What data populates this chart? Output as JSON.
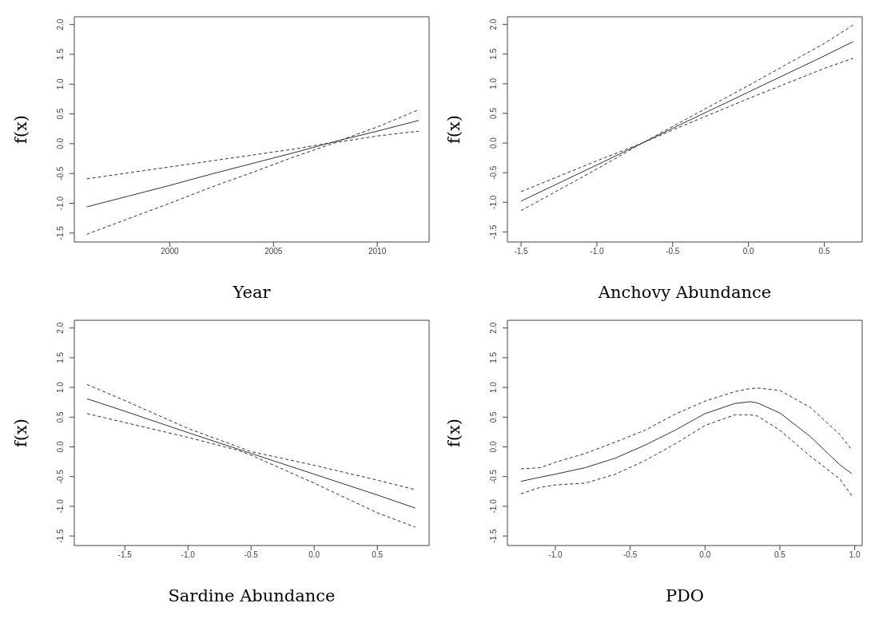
{
  "chart_data": [
    {
      "type": "line",
      "xlabel": "Year",
      "ylabel": "f(x)",
      "xlim": [
        1995.4,
        2012.5
      ],
      "xticks": [
        2000,
        2005,
        2010
      ],
      "ylim": [
        -1.65,
        2.13
      ],
      "yticks": [
        -1.5,
        {
          "value": -1,
          "label": "-1.0"
        },
        -0.5,
        {
          "value": 0,
          "label": "0.0"
        },
        0.5,
        {
          "value": 1,
          "label": "1.0"
        },
        1.5,
        {
          "value": 2,
          "label": "2.0"
        }
      ],
      "x": [
        1996,
        1998,
        2000,
        2002,
        2004,
        2006,
        2008,
        2010,
        2012
      ],
      "series": [
        {
          "color": "#333333",
          "line_style": "solid",
          "values": [
            -1.06,
            -0.88,
            -0.7,
            -0.51,
            -0.33,
            -0.15,
            0.04,
            0.21,
            0.39
          ]
        },
        {
          "color": "#333333",
          "line_style": "dashed",
          "values": [
            -1.52,
            -1.26,
            -1.0,
            -0.73,
            -0.48,
            -0.22,
            0.02,
            0.13,
            0.21
          ]
        },
        {
          "color": "#333333",
          "line_style": "dashed",
          "values": [
            -0.59,
            -0.49,
            -0.39,
            -0.29,
            -0.19,
            -0.09,
            0.03,
            0.28,
            0.57
          ]
        }
      ]
    },
    {
      "type": "line",
      "xlabel": "Anchovy Abundance",
      "ylabel": "f(x)",
      "xlim": [
        -1.59,
        0.75
      ],
      "xticks": [
        -1.5,
        {
          "value": -1,
          "label": "-1.0"
        },
        -0.5,
        {
          "value": 0,
          "label": "0.0"
        },
        0.5
      ],
      "ylim": [
        -1.67,
        2.13
      ],
      "yticks": [
        -1.5,
        {
          "value": -1,
          "label": "-1.0"
        },
        -0.5,
        {
          "value": 0,
          "label": "0.0"
        },
        0.5,
        {
          "value": 1,
          "label": "1.0"
        },
        1.5,
        {
          "value": 2,
          "label": "2.0"
        }
      ],
      "x": [
        -1.5,
        -1.0,
        -0.7,
        -0.5,
        0,
        0.5,
        0.69
      ],
      "series": [
        {
          "color": "#333333",
          "line_style": "solid",
          "values": [
            -0.98,
            -0.37,
            0.0,
            0.25,
            0.86,
            1.47,
            1.71
          ]
        },
        {
          "color": "#333333",
          "line_style": "dashed",
          "values": [
            -1.14,
            -0.44,
            0.0,
            0.22,
            0.75,
            1.26,
            1.43
          ]
        },
        {
          "color": "#333333",
          "line_style": "dashed",
          "values": [
            -0.82,
            -0.3,
            0.0,
            0.28,
            0.97,
            1.68,
            1.99
          ]
        }
      ]
    },
    {
      "type": "line",
      "xlabel": "Sardine Abundance",
      "ylabel": "f(x)",
      "xlim": [
        -1.9,
        0.91
      ],
      "xticks": [
        -1.5,
        {
          "value": -1,
          "label": "-1.0"
        },
        -0.5,
        {
          "value": 0,
          "label": "0.0"
        },
        0.5
      ],
      "ylim": [
        -1.66,
        2.13
      ],
      "yticks": [
        -1.5,
        {
          "value": -1,
          "label": "-1.0"
        },
        -0.5,
        {
          "value": 0,
          "label": "0.0"
        },
        0.5,
        {
          "value": 1,
          "label": "1.0"
        },
        1.5,
        {
          "value": 2,
          "label": "2.0"
        }
      ],
      "x": [
        -1.8,
        -1.5,
        -1.0,
        -0.6,
        -0.5,
        0,
        0.5,
        0.8
      ],
      "series": [
        {
          "color": "#333333",
          "line_style": "solid",
          "values": [
            0.81,
            0.6,
            0.24,
            -0.04,
            -0.11,
            -0.46,
            -0.81,
            -1.03
          ]
        },
        {
          "color": "#333333",
          "line_style": "dashed",
          "values": [
            0.56,
            0.41,
            0.16,
            -0.06,
            -0.14,
            -0.61,
            -1.11,
            -1.35
          ]
        },
        {
          "color": "#333333",
          "line_style": "dashed",
          "values": [
            1.05,
            0.78,
            0.31,
            0.0,
            -0.08,
            -0.31,
            -0.56,
            -0.72
          ]
        }
      ]
    },
    {
      "type": "line",
      "xlabel": "PDO",
      "ylabel": "f(x)",
      "xlim": [
        -1.32,
        1.05
      ],
      "xticks": [
        {
          "value": -1,
          "label": "-1.0"
        },
        -0.5,
        {
          "value": 0,
          "label": "0.0"
        },
        0.5,
        {
          "value": 1,
          "label": "1.0"
        }
      ],
      "ylim": [
        -1.66,
        2.13
      ],
      "yticks": [
        -1.5,
        {
          "value": -1,
          "label": "-1.0"
        },
        -0.5,
        {
          "value": 0,
          "label": "0.0"
        },
        0.5,
        {
          "value": 1,
          "label": "1.0"
        },
        1.5,
        {
          "value": 2,
          "label": "2.0"
        }
      ],
      "x": [
        -1.23,
        -1.1,
        -1.0,
        -0.8,
        -0.6,
        -0.4,
        -0.2,
        0,
        0.2,
        0.3,
        0.35,
        0.5,
        0.7,
        0.9,
        0.98
      ],
      "series": [
        {
          "color": "#333333",
          "line_style": "solid",
          "values": [
            -0.58,
            -0.51,
            -0.46,
            -0.35,
            -0.19,
            0.03,
            0.28,
            0.56,
            0.73,
            0.76,
            0.74,
            0.57,
            0.18,
            -0.3,
            -0.45
          ]
        },
        {
          "color": "#333333",
          "line_style": "dashed",
          "values": [
            -0.79,
            -0.68,
            -0.64,
            -0.61,
            -0.46,
            -0.23,
            0.05,
            0.36,
            0.54,
            0.54,
            0.52,
            0.28,
            -0.15,
            -0.54,
            -0.82
          ]
        },
        {
          "color": "#333333",
          "line_style": "dashed",
          "values": [
            -0.37,
            -0.35,
            -0.26,
            -0.11,
            0.08,
            0.28,
            0.55,
            0.77,
            0.93,
            0.98,
            0.99,
            0.95,
            0.67,
            0.21,
            -0.05
          ]
        }
      ]
    }
  ]
}
